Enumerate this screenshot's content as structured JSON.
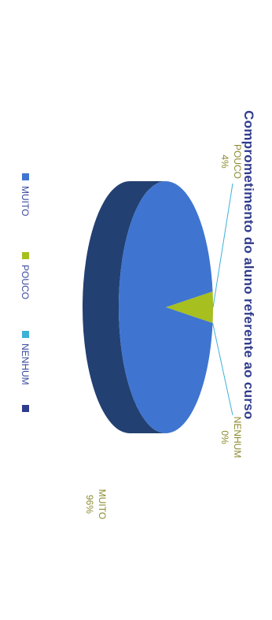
{
  "chart_data": {
    "type": "pie",
    "title": "Comprometimento do aluno referente ao curso",
    "categories": [
      "MUITO",
      "POUCO",
      "NENHUM"
    ],
    "values": [
      96,
      4,
      0
    ],
    "value_labels": [
      "96%",
      "4%",
      "0%"
    ],
    "colors": [
      "#3f75d0",
      "#a7bf1f",
      "#3cb0d8"
    ],
    "legend_placement": "bottom",
    "style": "3d"
  }
}
